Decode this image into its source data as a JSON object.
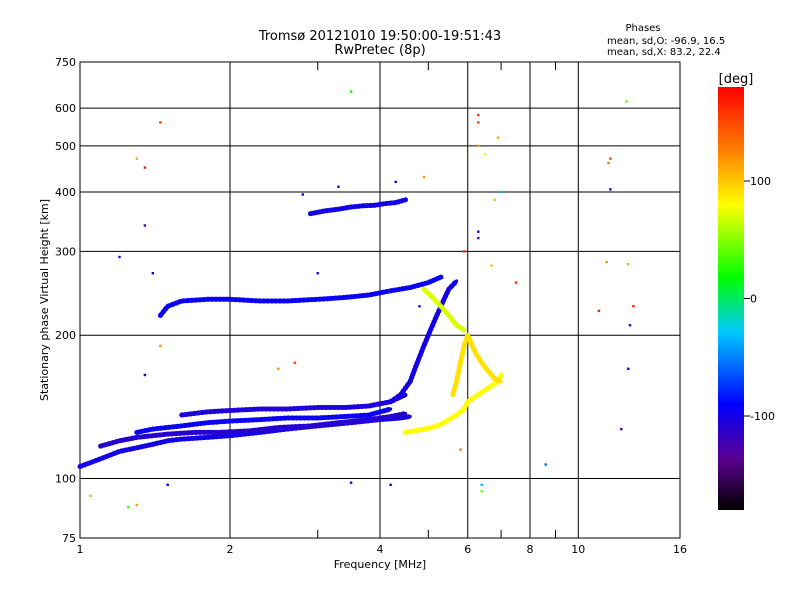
{
  "chart_data": {
    "type": "scatter",
    "title": "Tromsø 20121010 19:50:00-19:51:43",
    "subtitle": "RwPretec (8p)",
    "xlabel": "Frequency [MHz]",
    "ylabel": "Stationary phase Virtual Height [km]",
    "x_scale": "log",
    "y_scale": "log",
    "xlim": [
      1,
      16
    ],
    "ylim": [
      75,
      750
    ],
    "x_ticks": [
      1,
      2,
      4,
      6,
      8,
      10,
      16
    ],
    "x_tick_labels": [
      "1",
      "2",
      "4",
      "6",
      "8",
      "10",
      "16"
    ],
    "x_minor_ticks": [
      3,
      5,
      7,
      9
    ],
    "y_ticks": [
      75,
      100,
      200,
      300,
      400,
      500,
      600,
      750
    ],
    "y_tick_labels": [
      "75",
      "100",
      "200",
      "300",
      "400",
      "500",
      "600",
      "750"
    ],
    "grid": true,
    "stats": {
      "header": "Phases",
      "line1": "mean, sd,O: -96.9, 16.5",
      "line2": "mean, sd,X: 83.2, 22.4"
    },
    "colorbar": {
      "label": "[deg]",
      "range": [
        -180,
        180
      ],
      "ticks": [
        100,
        0,
        -100
      ],
      "tick_labels": [
        "100",
        "0",
        "-100"
      ]
    },
    "traces": [
      {
        "x": [
          1.0,
          1.05,
          1.1,
          1.15,
          1.2,
          1.3,
          1.4,
          1.5,
          1.6,
          1.8,
          2.0,
          2.3,
          2.6,
          3.0,
          3.5,
          4.0,
          4.4,
          4.6
        ],
        "y": [
          106,
          108,
          110,
          112,
          114,
          116,
          118,
          120,
          121,
          122,
          123,
          125,
          127,
          129,
          131,
          133,
          134,
          135
        ],
        "phase": -100
      },
      {
        "x": [
          1.1,
          1.2,
          1.3,
          1.4,
          1.5,
          1.7,
          1.9,
          2.2,
          2.5,
          2.9,
          3.3,
          3.8,
          4.2,
          4.5
        ],
        "y": [
          117,
          120,
          122,
          123,
          124,
          125,
          125,
          126,
          128,
          129,
          131,
          133,
          135,
          137
        ],
        "phase": -110
      },
      {
        "x": [
          1.3,
          1.4,
          1.6,
          1.8,
          2.0,
          2.3,
          2.6,
          3.0,
          3.4,
          3.8,
          4.2
        ],
        "y": [
          125,
          127,
          129,
          131,
          132,
          133,
          134,
          134,
          135,
          136,
          140
        ],
        "phase": -95
      },
      {
        "x": [
          1.6,
          1.8,
          2.0,
          2.3,
          2.6,
          3.0,
          3.4,
          3.8,
          4.2,
          4.5
        ],
        "y": [
          136,
          138,
          139,
          140,
          140,
          141,
          141,
          142,
          145,
          150
        ],
        "phase": -105
      },
      {
        "x": [
          4.2,
          4.4,
          4.6,
          4.7,
          4.8,
          4.9,
          5.0,
          5.1,
          5.2,
          5.3,
          5.4,
          5.5,
          5.6,
          5.7
        ],
        "y": [
          145,
          150,
          160,
          170,
          180,
          190,
          200,
          210,
          220,
          230,
          240,
          250,
          255,
          260
        ],
        "phase": -100
      },
      {
        "x": [
          1.45,
          1.5,
          1.6,
          1.8,
          2.0,
          2.3,
          2.6,
          3.0,
          3.4,
          3.8,
          4.2,
          4.6,
          5.0,
          5.3
        ],
        "y": [
          220,
          230,
          236,
          238,
          238,
          236,
          236,
          238,
          240,
          243,
          248,
          252,
          258,
          265
        ],
        "phase": -95
      },
      {
        "x": [
          2.9,
          3.1,
          3.3,
          3.5,
          3.7,
          3.9,
          4.1,
          4.3,
          4.5
        ],
        "y": [
          360,
          365,
          368,
          372,
          374,
          375,
          378,
          380,
          385
        ],
        "phase": -100
      },
      {
        "x": [
          4.5,
          4.7,
          4.9,
          5.1,
          5.3,
          5.5,
          5.7,
          5.9,
          6.0,
          6.3,
          6.6,
          6.9,
          7.0
        ],
        "y": [
          125,
          126,
          127,
          128,
          130,
          133,
          136,
          140,
          145,
          150,
          155,
          160,
          165
        ],
        "phase": 80
      },
      {
        "x": [
          5.6,
          5.7,
          5.8,
          5.9,
          6.0,
          6.2,
          6.4,
          6.6,
          6.8,
          7.0
        ],
        "y": [
          150,
          160,
          175,
          190,
          200,
          185,
          175,
          168,
          162,
          160
        ],
        "phase": 90
      },
      {
        "x": [
          4.9,
          5.1,
          5.3,
          5.5,
          5.7,
          5.9
        ],
        "y": [
          250,
          240,
          230,
          220,
          210,
          205
        ],
        "phase": 70
      }
    ],
    "isolated_points": [
      {
        "x": 1.45,
        "y": 560,
        "phase": 150
      },
      {
        "x": 1.35,
        "y": 450,
        "phase": 170
      },
      {
        "x": 1.3,
        "y": 470,
        "phase": 110
      },
      {
        "x": 1.35,
        "y": 340,
        "phase": -120
      },
      {
        "x": 1.2,
        "y": 292,
        "phase": -110
      },
      {
        "x": 1.4,
        "y": 270,
        "phase": -100
      },
      {
        "x": 1.45,
        "y": 190,
        "phase": 120
      },
      {
        "x": 1.35,
        "y": 165,
        "phase": -110
      },
      {
        "x": 1.05,
        "y": 92,
        "phase": 110
      },
      {
        "x": 1.25,
        "y": 87,
        "phase": 30
      },
      {
        "x": 1.3,
        "y": 88,
        "phase": 110
      },
      {
        "x": 1.5,
        "y": 97,
        "phase": -100
      },
      {
        "x": 3.5,
        "y": 650,
        "phase": 20
      },
      {
        "x": 2.8,
        "y": 395,
        "phase": -100
      },
      {
        "x": 3.3,
        "y": 410,
        "phase": -110
      },
      {
        "x": 4.3,
        "y": 420,
        "phase": -100
      },
      {
        "x": 4.9,
        "y": 430,
        "phase": 120
      },
      {
        "x": 6.3,
        "y": 580,
        "phase": 160
      },
      {
        "x": 6.3,
        "y": 560,
        "phase": 150
      },
      {
        "x": 6.3,
        "y": 500,
        "phase": 110
      },
      {
        "x": 6.9,
        "y": 520,
        "phase": 110
      },
      {
        "x": 6.5,
        "y": 480,
        "phase": 70
      },
      {
        "x": 7.0,
        "y": 400,
        "phase": -30
      },
      {
        "x": 6.8,
        "y": 385,
        "phase": 50
      },
      {
        "x": 6.3,
        "y": 330,
        "phase": -110
      },
      {
        "x": 6.3,
        "y": 320,
        "phase": -120
      },
      {
        "x": 5.9,
        "y": 300,
        "phase": 160
      },
      {
        "x": 6.7,
        "y": 280,
        "phase": 100
      },
      {
        "x": 7.5,
        "y": 258,
        "phase": 160
      },
      {
        "x": 2.7,
        "y": 175,
        "phase": 150
      },
      {
        "x": 2.5,
        "y": 170,
        "phase": 120
      },
      {
        "x": 3.0,
        "y": 270,
        "phase": -100
      },
      {
        "x": 4.8,
        "y": 230,
        "phase": -100
      },
      {
        "x": 3.5,
        "y": 98,
        "phase": -100
      },
      {
        "x": 4.2,
        "y": 97,
        "phase": -100
      },
      {
        "x": 6.4,
        "y": 97,
        "phase": -30
      },
      {
        "x": 6.4,
        "y": 94,
        "phase": 40
      },
      {
        "x": 8.6,
        "y": 107,
        "phase": -60
      },
      {
        "x": 11.6,
        "y": 470,
        "phase": 150
      },
      {
        "x": 11.5,
        "y": 460,
        "phase": 130
      },
      {
        "x": 11.6,
        "y": 405,
        "phase": -100
      },
      {
        "x": 12.5,
        "y": 620,
        "phase": 40
      },
      {
        "x": 11.4,
        "y": 285,
        "phase": 120
      },
      {
        "x": 12.6,
        "y": 282,
        "phase": 110
      },
      {
        "x": 11.0,
        "y": 225,
        "phase": 170
      },
      {
        "x": 12.9,
        "y": 230,
        "phase": 170
      },
      {
        "x": 12.7,
        "y": 210,
        "phase": -120
      },
      {
        "x": 12.6,
        "y": 170,
        "phase": -100
      },
      {
        "x": 12.2,
        "y": 127,
        "phase": -120
      },
      {
        "x": 5.8,
        "y": 115,
        "phase": 130
      }
    ]
  }
}
